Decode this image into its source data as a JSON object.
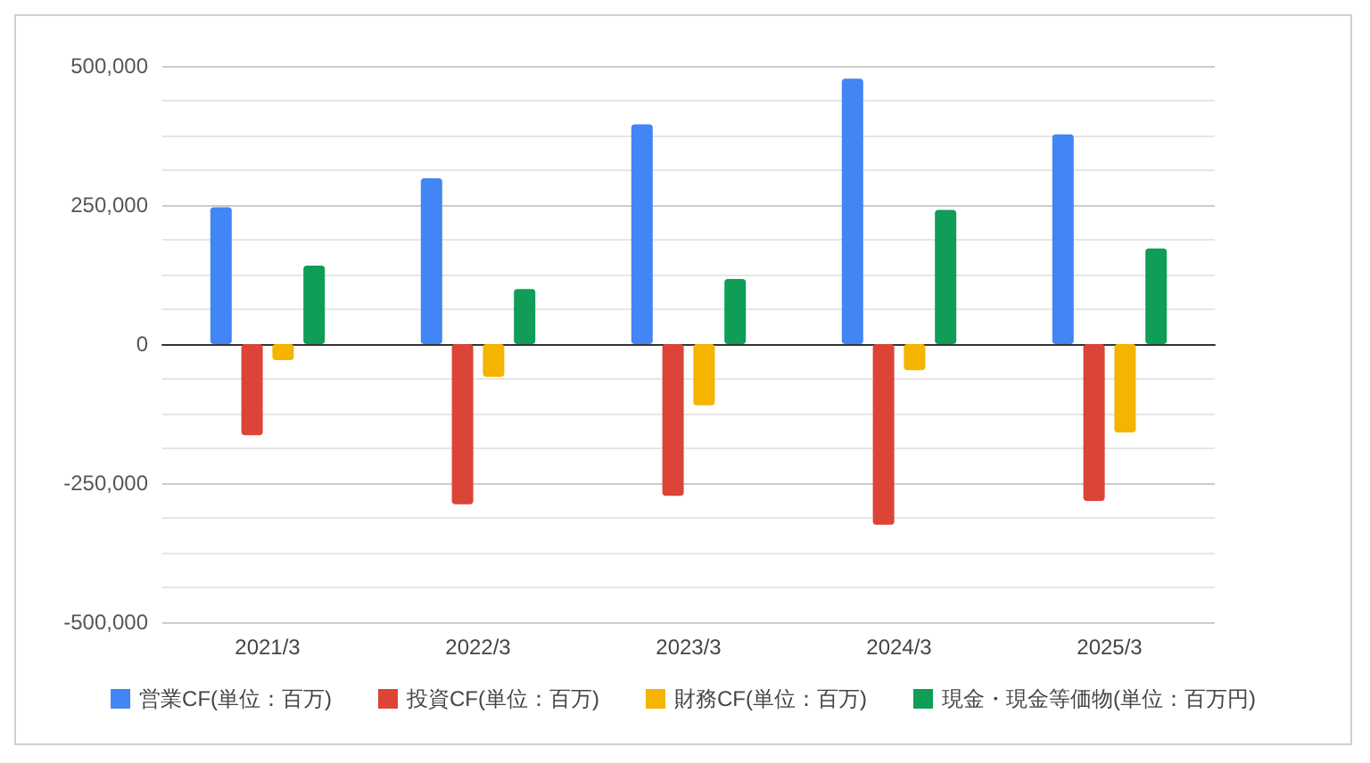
{
  "chart_data": {
    "type": "bar",
    "categories": [
      "2021/3",
      "2022/3",
      "2023/3",
      "2024/3",
      "2025/3"
    ],
    "series": [
      {
        "name": "営業CF(単位：百万)",
        "color": "#4285f4",
        "values": [
          246000,
          298000,
          395000,
          477000,
          377000
        ]
      },
      {
        "name": "投資CF(単位：百万)",
        "color": "#db4437",
        "values": [
          -164000,
          -288000,
          -273000,
          -325000,
          -282000
        ]
      },
      {
        "name": "財務CF(単位：百万)",
        "color": "#f4b400",
        "values": [
          -29000,
          -59000,
          -110000,
          -47000,
          -159000
        ]
      },
      {
        "name": "現金・現金等価物(単位：百万円)",
        "color": "#0f9d58",
        "values": [
          141000,
          99000,
          117000,
          241000,
          172000
        ]
      }
    ],
    "ylim": [
      -500000,
      500000
    ],
    "yticks": [
      {
        "value": -500000,
        "label": "-500,000"
      },
      {
        "value": -437500,
        "label": null
      },
      {
        "value": -375000,
        "label": null
      },
      {
        "value": -312500,
        "label": null
      },
      {
        "value": -250000,
        "label": "-250,000"
      },
      {
        "value": -187500,
        "label": null
      },
      {
        "value": -125000,
        "label": null
      },
      {
        "value": -62500,
        "label": null
      },
      0,
      {
        "value": 62500,
        "label": null
      },
      {
        "value": 125000,
        "label": null
      },
      {
        "value": 187500,
        "label": null
      },
      {
        "value": 250000,
        "label": "250,000"
      },
      {
        "value": 312500,
        "label": null
      },
      {
        "value": 375000,
        "label": null
      },
      {
        "value": 437500,
        "label": null
      },
      {
        "value": 500000,
        "label": "500,000"
      }
    ],
    "grid": true,
    "legend": "bottom"
  }
}
